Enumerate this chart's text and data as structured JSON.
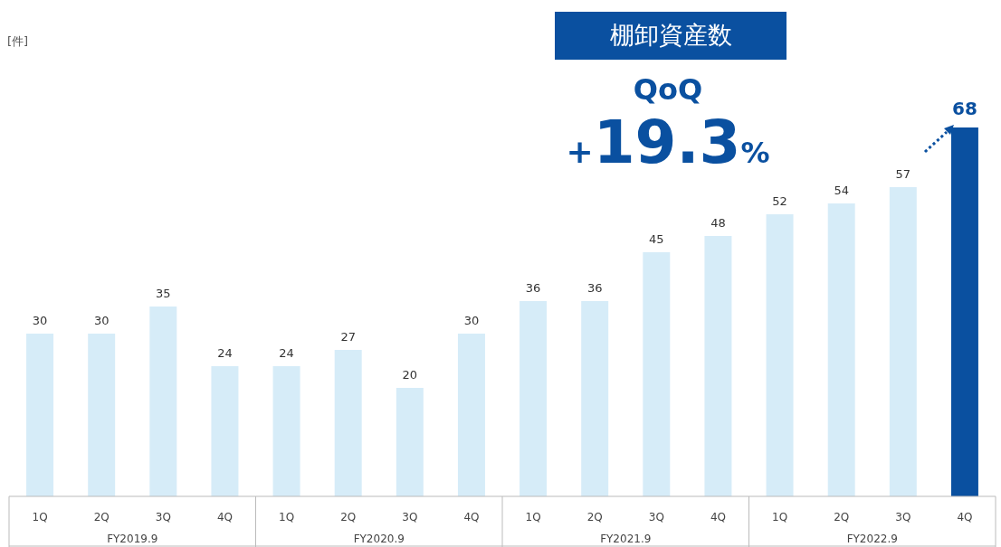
{
  "chart_data": {
    "type": "bar",
    "title": "棚卸資産数",
    "categories": [
      "1Q",
      "2Q",
      "3Q",
      "4Q",
      "1Q",
      "2Q",
      "3Q",
      "4Q",
      "1Q",
      "2Q",
      "3Q",
      "4Q",
      "1Q",
      "2Q",
      "3Q",
      "4Q"
    ],
    "values": [
      30,
      30,
      35,
      24,
      24,
      27,
      20,
      30,
      36,
      36,
      45,
      48,
      52,
      54,
      57,
      68
    ],
    "colors": [
      "#d6ecf8",
      "#d6ecf8",
      "#d6ecf8",
      "#d6ecf8",
      "#d6ecf8",
      "#d6ecf8",
      "#d6ecf8",
      "#d6ecf8",
      "#d6ecf8",
      "#d6ecf8",
      "#d6ecf8",
      "#d6ecf8",
      "#d6ecf8",
      "#d6ecf8",
      "#d6ecf8",
      "#0a50a0"
    ],
    "data_labels": true,
    "annotations": [
      "[件]",
      "QoQ",
      "+19.3%",
      "FY2019.9",
      "FY2020.9",
      "FY2021.9",
      "FY2022.9"
    ]
  }
}
